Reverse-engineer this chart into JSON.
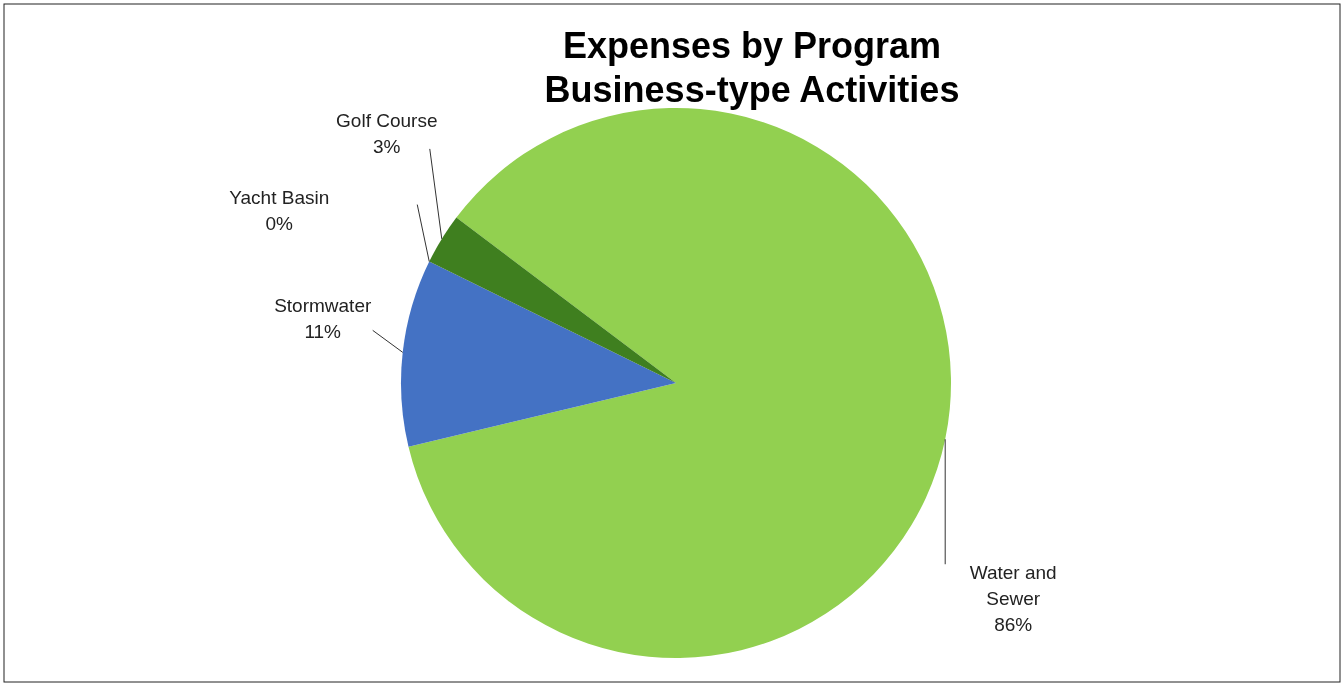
{
  "chart_data": {
    "type": "pie",
    "title": "Expenses by Program Business-type Activities",
    "categories": [
      "Water and Sewer",
      "Stormwater",
      "Yacht Basin",
      "Golf Course"
    ],
    "values": [
      86,
      11,
      0,
      3
    ],
    "colors": [
      "#92d050",
      "#4472c4",
      null,
      "#3f7f1f"
    ],
    "value_labels": [
      "86%",
      "11%",
      "0%",
      "3%"
    ]
  }
}
